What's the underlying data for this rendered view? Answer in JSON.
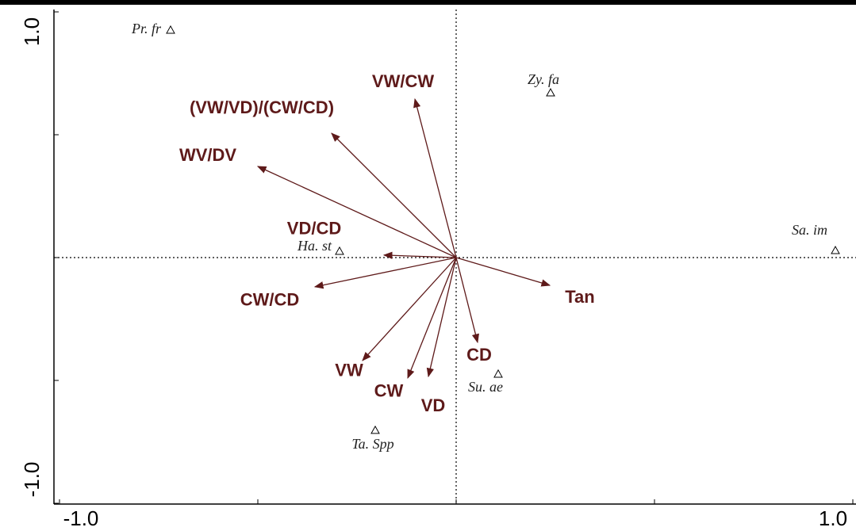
{
  "chart_data": {
    "type": "biplot",
    "xlim": [
      -1,
      1
    ],
    "ylim": [
      -1,
      1
    ],
    "xticks": [
      {
        "value": -1,
        "label": "-1.0"
      },
      {
        "value": 1,
        "label": "1.0"
      }
    ],
    "yticks": [
      {
        "value": 1,
        "label": "1.0"
      },
      {
        "value": -1,
        "label": "-1.0"
      }
    ],
    "xminor": [
      -0.5,
      0,
      0.5
    ],
    "yminor": [
      0.5,
      0,
      -0.5
    ],
    "arrow_color": "#5e1a1a",
    "arrows": [
      {
        "name": "VW/CW",
        "x": -0.104,
        "y": 0.645
      },
      {
        "name": "(VW/VD)/(CW/CD)",
        "x": -0.314,
        "y": 0.506
      },
      {
        "name": "WV/DV",
        "x": -0.5,
        "y": 0.371
      },
      {
        "name": "VD/CD",
        "x": -0.182,
        "y": 0.01
      },
      {
        "name": "CW/CD",
        "x": -0.356,
        "y": -0.119
      },
      {
        "name": "Tan",
        "x": 0.236,
        "y": -0.113
      },
      {
        "name": "CD",
        "x": 0.054,
        "y": -0.345
      },
      {
        "name": "VW",
        "x": -0.236,
        "y": -0.419
      },
      {
        "name": "CW",
        "x": -0.122,
        "y": -0.49
      },
      {
        "name": "VD",
        "x": -0.07,
        "y": -0.484
      }
    ],
    "points": [
      {
        "name": "Pr. fr",
        "x": -0.72,
        "y": 0.926
      },
      {
        "name": "Zy. fa",
        "x": 0.238,
        "y": 0.671
      },
      {
        "name": "Sa. im",
        "x": 0.956,
        "y": 0.029
      },
      {
        "name": "Ha. st",
        "x": -0.294,
        "y": 0.026
      },
      {
        "name": "Su. ae",
        "x": 0.106,
        "y": -0.474
      },
      {
        "name": "Ta. Spp",
        "x": -0.204,
        "y": -0.703
      }
    ]
  }
}
